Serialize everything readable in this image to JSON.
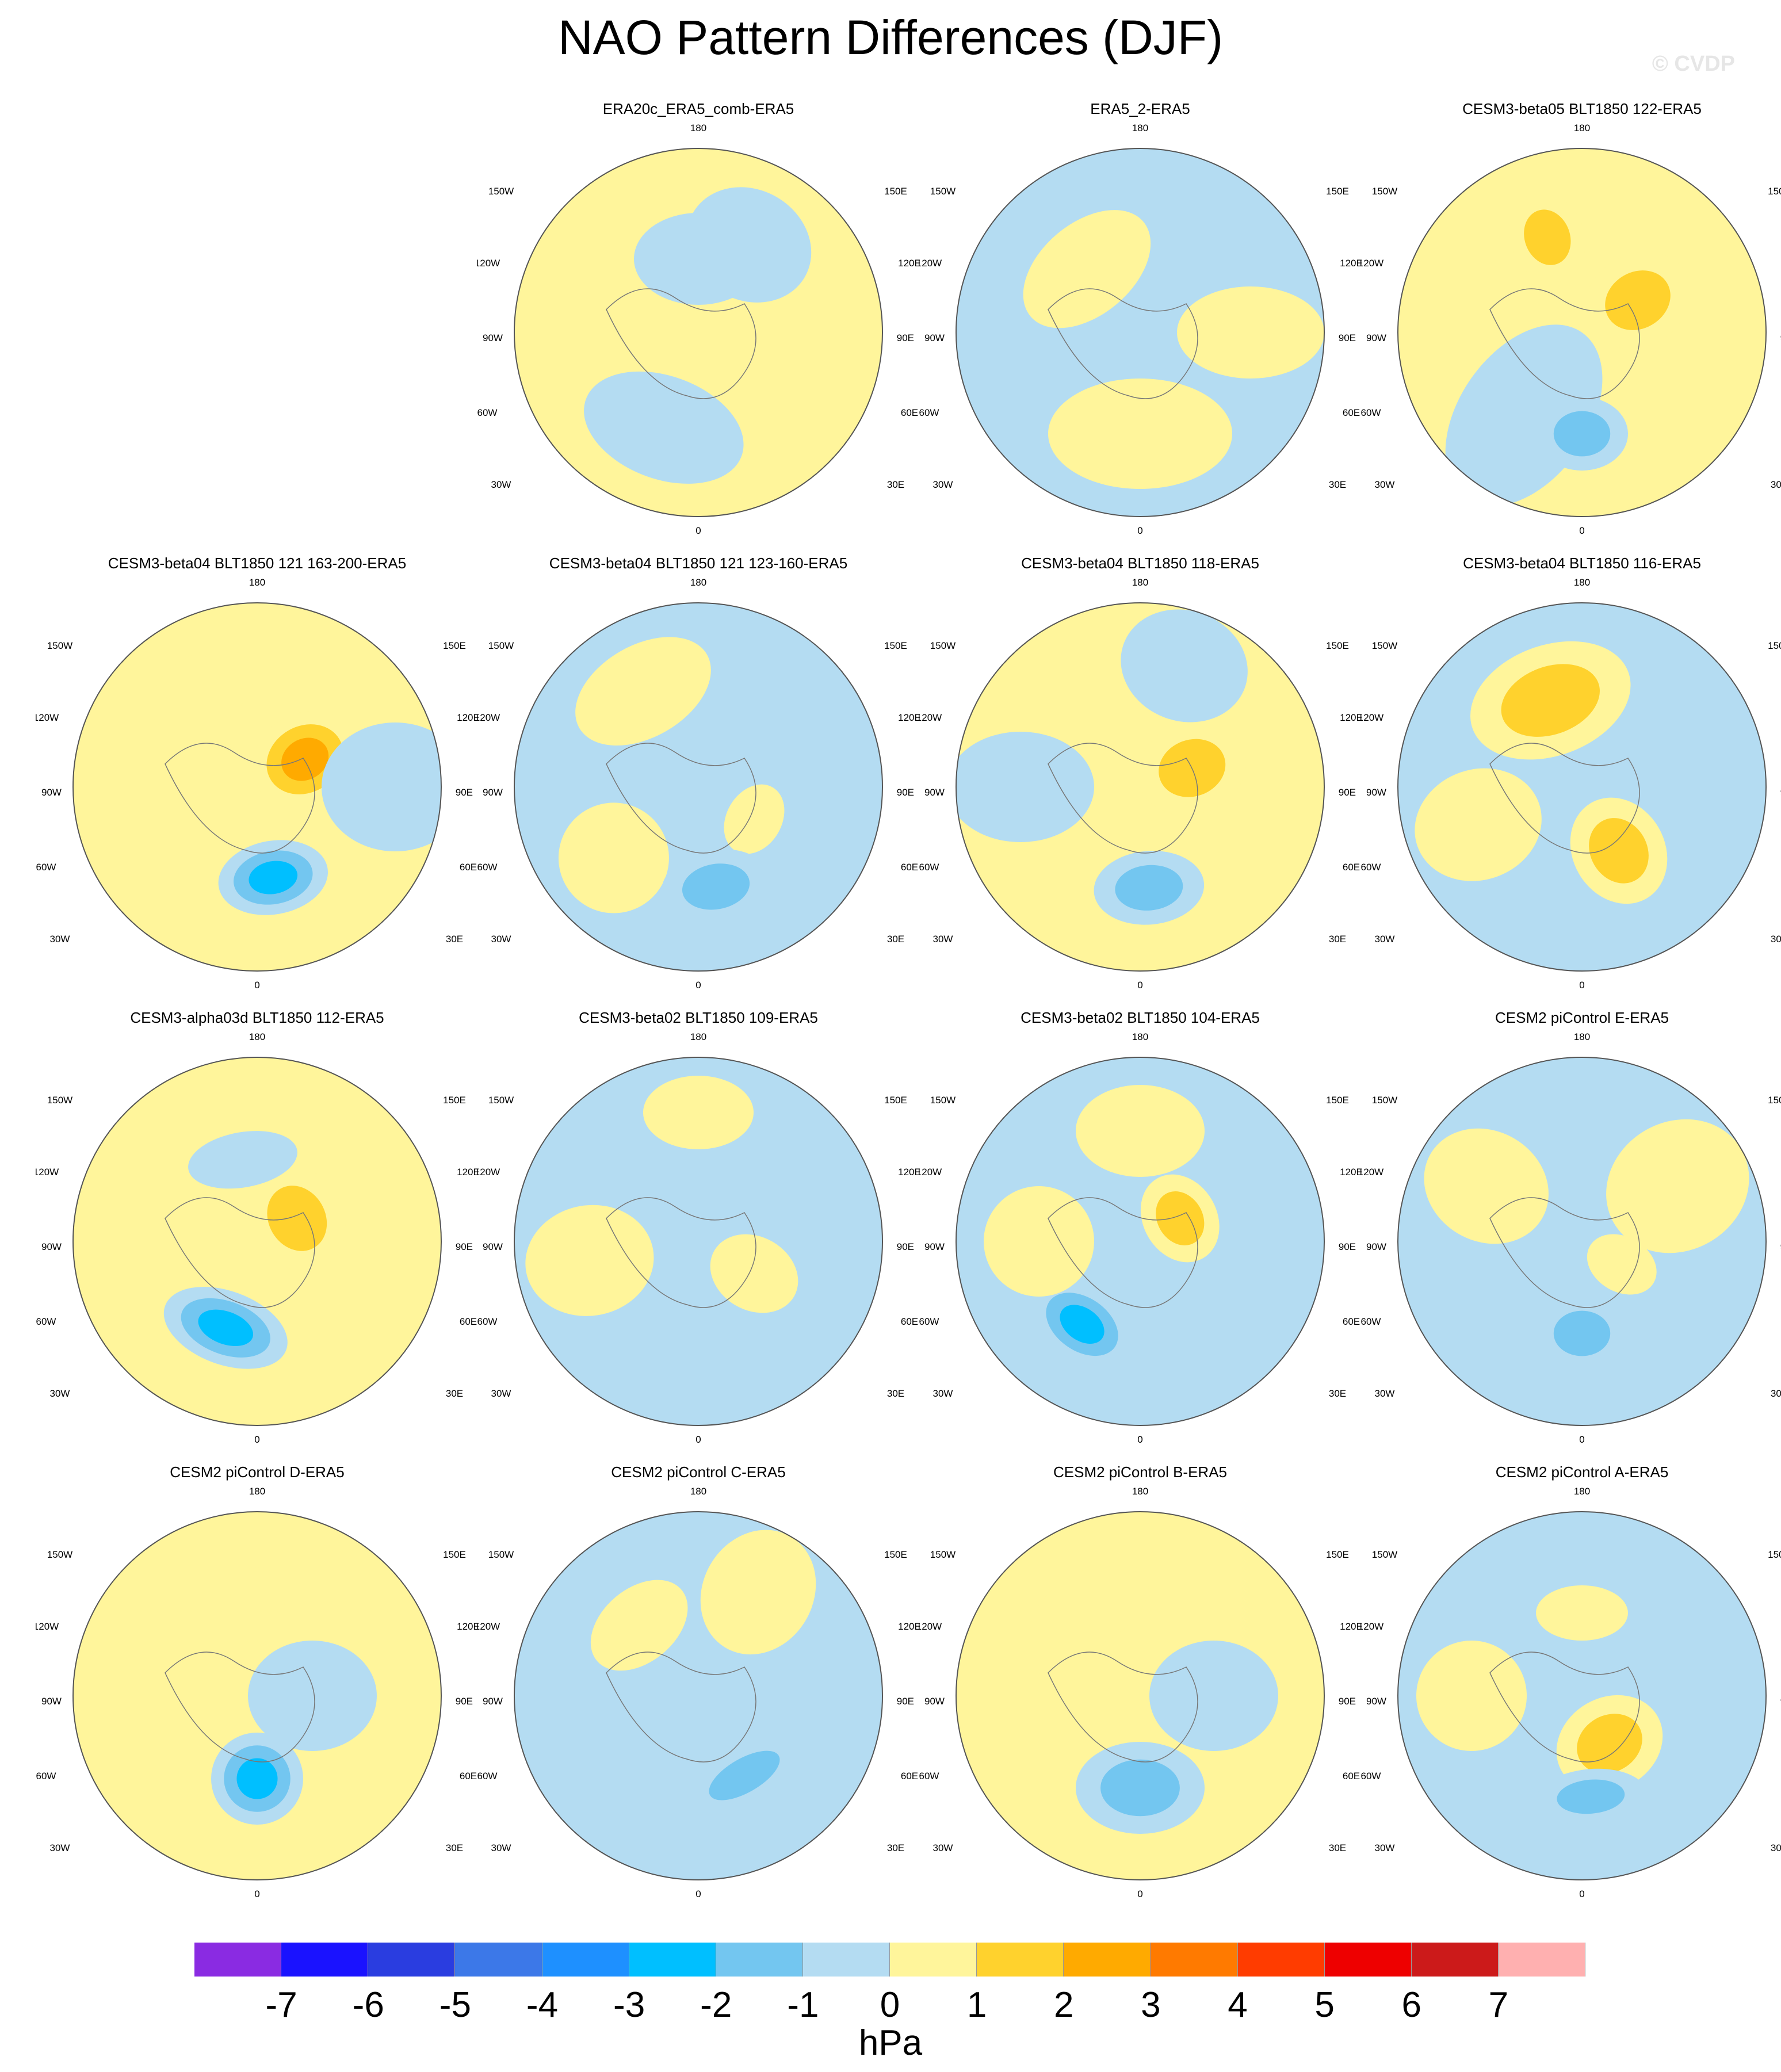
{
  "title": "NAO Pattern Differences (DJF)",
  "watermark": "© CVDP",
  "map_labels": {
    "top": "180",
    "bottom": "0",
    "left_upper": "150W",
    "left_mid_upper": "120W",
    "left_mid": "90W",
    "left_mid_lower": "60W",
    "left_lower": "30W",
    "right_upper": "150E",
    "right_mid_upper": "120E",
    "right_mid": "90E",
    "right_mid_lower": "60E",
    "right_lower": "30E"
  },
  "panels": [
    {
      "title": "ERA20c_ERA5_comb-ERA5",
      "base": "#fff59b",
      "blobs": [
        {
          "dir": 200,
          "r": 0.55,
          "w": 0.45,
          "h": 0.28,
          "level": -1
        },
        {
          "dir": 30,
          "r": 0.55,
          "w": 0.35,
          "h": 0.3,
          "level": -1
        },
        {
          "dir": 0,
          "r": 0.4,
          "w": 0.35,
          "h": 0.25,
          "level": -1
        }
      ]
    },
    {
      "title": "ERA5_2-ERA5",
      "base": "#b4dcf2",
      "blobs": [
        {
          "dir": 320,
          "r": 0.45,
          "w": 0.4,
          "h": 0.25,
          "level": 1
        },
        {
          "dir": 180,
          "r": 0.55,
          "w": 0.5,
          "h": 0.3,
          "level": 1
        },
        {
          "dir": 90,
          "r": 0.6,
          "w": 0.25,
          "h": 0.4,
          "level": 1
        }
      ]
    },
    {
      "title": "CESM3-beta05 BLT1850 122-ERA5",
      "base": "#fff59b",
      "blobs": [
        {
          "dir": 215,
          "r": 0.55,
          "w": 0.35,
          "h": 0.55,
          "level": -1
        },
        {
          "dir": 340,
          "r": 0.55,
          "w": 0.2,
          "h": 0.25,
          "level": 2
        },
        {
          "dir": 60,
          "r": 0.35,
          "w": 0.25,
          "h": 0.3,
          "level": 2
        },
        {
          "dir": 180,
          "r": 0.55,
          "w": 0.25,
          "h": 0.2,
          "level": -2
        }
      ]
    },
    {
      "title": "CESM3-beta04 BLT1850 121 163-200-ERA5",
      "base": "#fff59b",
      "blobs": [
        {
          "dir": 330,
          "r": 0.6,
          "w": 0.3,
          "h": 0.2,
          "level": 1
        },
        {
          "dir": 60,
          "r": 0.3,
          "w": 0.25,
          "h": 0.3,
          "level": 3
        },
        {
          "dir": 170,
          "r": 0.5,
          "w": 0.3,
          "h": 0.2,
          "level": -3
        },
        {
          "dir": 90,
          "r": 0.75,
          "w": 0.35,
          "h": 0.4,
          "level": -1
        }
      ]
    },
    {
      "title": "CESM3-beta04 BLT1850 121 123-160-ERA5",
      "base": "#b4dcf2",
      "blobs": [
        {
          "dir": 330,
          "r": 0.6,
          "w": 0.4,
          "h": 0.25,
          "level": 1
        },
        {
          "dir": 230,
          "r": 0.6,
          "w": 0.3,
          "h": 0.3,
          "level": 1
        },
        {
          "dir": 120,
          "r": 0.35,
          "w": 0.2,
          "h": 0.15,
          "level": 1
        },
        {
          "dir": 170,
          "r": 0.55,
          "w": 0.3,
          "h": 0.2,
          "level": -2
        }
      ]
    },
    {
      "title": "CESM3-beta04 BLT1850 118-ERA5",
      "base": "#fff59b",
      "blobs": [
        {
          "dir": 70,
          "r": 0.3,
          "w": 0.25,
          "h": 0.3,
          "level": 2
        },
        {
          "dir": 175,
          "r": 0.55,
          "w": 0.3,
          "h": 0.2,
          "level": -2
        },
        {
          "dir": 20,
          "r": 0.7,
          "w": 0.35,
          "h": 0.3,
          "level": -1
        },
        {
          "dir": 270,
          "r": 0.65,
          "w": 0.3,
          "h": 0.4,
          "level": -1
        }
      ]
    },
    {
      "title": "CESM3-beta04 BLT1850 116-ERA5",
      "base": "#b4dcf2",
      "blobs": [
        {
          "dir": 340,
          "r": 0.5,
          "w": 0.45,
          "h": 0.3,
          "level": 2
        },
        {
          "dir": 150,
          "r": 0.4,
          "w": 0.25,
          "h": 0.3,
          "level": 2
        },
        {
          "dir": 250,
          "r": 0.6,
          "w": 0.3,
          "h": 0.35,
          "level": 1
        }
      ]
    },
    {
      "title": "CESM3-alpha03d BLT1850 112-ERA5",
      "base": "#fff59b",
      "blobs": [
        {
          "dir": 60,
          "r": 0.25,
          "w": 0.3,
          "h": 0.25,
          "level": 2
        },
        {
          "dir": 200,
          "r": 0.5,
          "w": 0.35,
          "h": 0.2,
          "level": -3
        },
        {
          "dir": 350,
          "r": 0.45,
          "w": 0.3,
          "h": 0.15,
          "level": -1
        }
      ]
    },
    {
      "title": "CESM3-beta02 BLT1850 109-ERA5",
      "base": "#b4dcf2",
      "blobs": [
        {
          "dir": 260,
          "r": 0.6,
          "w": 0.3,
          "h": 0.35,
          "level": 1
        },
        {
          "dir": 120,
          "r": 0.35,
          "w": 0.2,
          "h": 0.25,
          "level": 1
        },
        {
          "dir": 0,
          "r": 0.7,
          "w": 0.3,
          "h": 0.2,
          "level": 1
        }
      ]
    },
    {
      "title": "CESM3-beta02 BLT1850 104-ERA5",
      "base": "#b4dcf2",
      "blobs": [
        {
          "dir": 0,
          "r": 0.6,
          "w": 0.35,
          "h": 0.25,
          "level": 1
        },
        {
          "dir": 60,
          "r": 0.25,
          "w": 0.25,
          "h": 0.2,
          "level": 2
        },
        {
          "dir": 215,
          "r": 0.55,
          "w": 0.3,
          "h": 0.2,
          "level": -3
        },
        {
          "dir": 270,
          "r": 0.55,
          "w": 0.3,
          "h": 0.3,
          "level": 1
        }
      ]
    },
    {
      "title": "CESM2 piControl E-ERA5",
      "base": "#b4dcf2",
      "blobs": [
        {
          "dir": 300,
          "r": 0.6,
          "w": 0.3,
          "h": 0.35,
          "level": 1
        },
        {
          "dir": 60,
          "r": 0.6,
          "w": 0.35,
          "h": 0.4,
          "level": 1
        },
        {
          "dir": 180,
          "r": 0.5,
          "w": 0.25,
          "h": 0.2,
          "level": -2
        },
        {
          "dir": 120,
          "r": 0.25,
          "w": 0.15,
          "h": 0.2,
          "level": 1
        }
      ]
    },
    {
      "title": "CESM2 piControl D-ERA5",
      "base": "#fff59b",
      "blobs": [
        {
          "dir": 180,
          "r": 0.45,
          "w": 0.25,
          "h": 0.25,
          "level": -3
        },
        {
          "dir": 0,
          "r": 0.5,
          "w": 0.15,
          "h": 0.2,
          "level": 1
        },
        {
          "dir": 90,
          "r": 0.3,
          "w": 0.3,
          "h": 0.35,
          "level": -1
        }
      ]
    },
    {
      "title": "CESM2 piControl C-ERA5",
      "base": "#b4dcf2",
      "blobs": [
        {
          "dir": 320,
          "r": 0.5,
          "w": 0.3,
          "h": 0.2,
          "level": 1
        },
        {
          "dir": 30,
          "r": 0.65,
          "w": 0.3,
          "h": 0.35,
          "level": 1
        },
        {
          "dir": 150,
          "r": 0.5,
          "w": 0.35,
          "h": 0.15,
          "level": -2
        }
      ]
    },
    {
      "title": "CESM2 piControl B-ERA5",
      "base": "#fff59b",
      "blobs": [
        {
          "dir": 180,
          "r": 0.5,
          "w": 0.35,
          "h": 0.25,
          "level": -2
        },
        {
          "dir": 330,
          "r": 0.55,
          "w": 0.35,
          "h": 0.2,
          "level": 1
        },
        {
          "dir": 90,
          "r": 0.4,
          "w": 0.3,
          "h": 0.35,
          "level": -1
        }
      ]
    },
    {
      "title": "CESM2 piControl A-ERA5",
      "base": "#b4dcf2",
      "blobs": [
        {
          "dir": 150,
          "r": 0.3,
          "w": 0.3,
          "h": 0.25,
          "level": 2
        },
        {
          "dir": 175,
          "r": 0.55,
          "w": 0.3,
          "h": 0.15,
          "level": -2
        },
        {
          "dir": 0,
          "r": 0.45,
          "w": 0.25,
          "h": 0.15,
          "level": 1
        },
        {
          "dir": 270,
          "r": 0.6,
          "w": 0.3,
          "h": 0.3,
          "level": 1
        }
      ]
    }
  ],
  "colorbar": {
    "colors": [
      "#8a2be2",
      "#1a12ff",
      "#2a3de0",
      "#3c78e8",
      "#1e90ff",
      "#00bfff",
      "#73c6f0",
      "#b4dcf2",
      "#fff59b",
      "#ffd22d",
      "#ffaa00",
      "#ff7a00",
      "#ff3c00",
      "#ee0000",
      "#cc1a1a",
      "#ffb0b0"
    ],
    "ticks": [
      "-7",
      "-6",
      "-5",
      "-4",
      "-3",
      "-2",
      "-1",
      "0",
      "1",
      "2",
      "3",
      "4",
      "5",
      "6",
      "7"
    ],
    "unit": "hPa"
  }
}
